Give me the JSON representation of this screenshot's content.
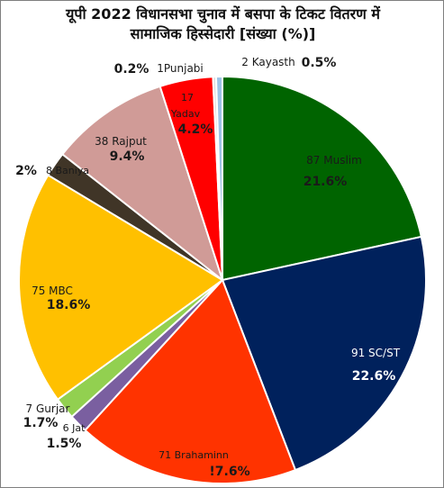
{
  "chart_data": {
    "type": "pie",
    "title_line1": "यूपी 2022 विधानसभा चुनाव में बसपा के टिकट वितरण में",
    "title_line2": "सामाजिक हिस्सेदारी [संख्या (%)]",
    "slices": [
      {
        "name": "Muslim",
        "count": "87",
        "label": "87 Muslim",
        "percent_label": "21.6%",
        "value": 87,
        "color": "#006400",
        "text_color": "#1a1a1a"
      },
      {
        "name": "SC/ST",
        "count": "91",
        "label": "91 SC/ST",
        "percent_label": "22.6%",
        "value": 91,
        "color": "#00215c",
        "text_color": "#ffffff"
      },
      {
        "name": "Brahaminn",
        "count": "71",
        "label": "71 Brahaminn",
        "percent_label": "!7.6%",
        "value": 71,
        "color": "#ff3300",
        "text_color": "#1a1a1a"
      },
      {
        "name": "Jat",
        "count": "6",
        "label": "6 Jat",
        "percent_label": "1.5%",
        "value": 6,
        "color": "#7a5fa0",
        "text_color": "#1a1a1a"
      },
      {
        "name": "Gurjar",
        "count": "7",
        "label": "7 Gurjar",
        "percent_label": "1.7%",
        "value": 7,
        "color": "#92d050",
        "text_color": "#1a1a1a"
      },
      {
        "name": "MBC",
        "count": "75",
        "label": "75 MBC",
        "percent_label": "18.6%",
        "value": 75,
        "color": "#ffc000",
        "text_color": "#1a1a1a"
      },
      {
        "name": "Baniya",
        "count": "8",
        "label": "8 Baniya",
        "percent_label": "2%",
        "value": 8,
        "color": "#403527",
        "text_color": "#1a1a1a"
      },
      {
        "name": "Rajput",
        "count": "38",
        "label": "38 Rajput",
        "percent_label": "9.4%",
        "value": 38,
        "color": "#d09b97",
        "text_color": "#1a1a1a"
      },
      {
        "name": "Yadav",
        "count": "17",
        "label": "17 Yadav",
        "percent_label": "4.2%",
        "value": 17,
        "color": "#ff0000",
        "text_color": "#1a1a1a"
      },
      {
        "name": "Punjabi",
        "count": "1",
        "label": "1Punjabi",
        "percent_label": "0.2%",
        "value": 1,
        "color": "#dddddd",
        "text_color": "#1a1a1a"
      },
      {
        "name": "Kayasth",
        "count": "2",
        "label": "2 Kayasth",
        "percent_label": "0.5%",
        "value": 2,
        "color": "#9dc3e6",
        "text_color": "#1a1a1a"
      }
    ]
  }
}
